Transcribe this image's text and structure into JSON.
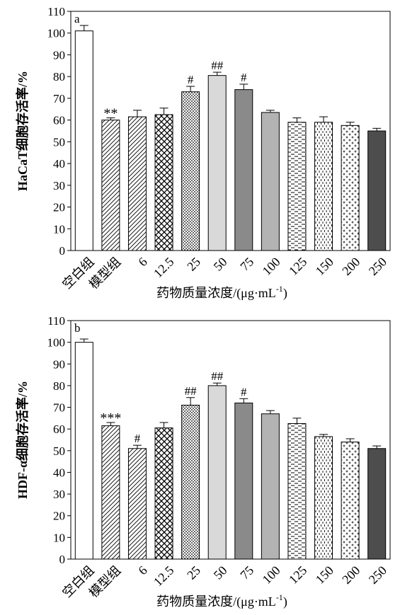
{
  "chart_data": [
    {
      "panel_label": "a",
      "type": "bar",
      "ylabel": "HaCaT细胞存活率/%",
      "xlabel": "药物质量浓度/(μg·mL",
      "xlabel_sup": "-1",
      "xlabel_end": ")",
      "ylim": [
        0,
        110
      ],
      "yticks": [
        0,
        10,
        20,
        30,
        40,
        50,
        60,
        70,
        80,
        90,
        100,
        110
      ],
      "categories": [
        "空白组",
        "模型组",
        "6",
        "12.5",
        "25",
        "50",
        "75",
        "100",
        "125",
        "150",
        "200",
        "250"
      ],
      "values": [
        101,
        60,
        61.5,
        62.5,
        73,
        80.5,
        74,
        63.5,
        59,
        59,
        57.5,
        55
      ],
      "errors": [
        2.5,
        1,
        3,
        3,
        2.5,
        1.5,
        2.5,
        1,
        2,
        2.5,
        1.5,
        1.2
      ],
      "annotations": [
        "",
        "**",
        "",
        "",
        "#",
        "##",
        "#",
        "",
        "",
        "",
        "",
        ""
      ],
      "bar_fills": [
        "white",
        "diag",
        "diag",
        "cross",
        "dots-dense",
        "light-gray",
        "mid-gray",
        "gray",
        "dash",
        "vdash",
        "plus",
        "dark"
      ]
    },
    {
      "panel_label": "b",
      "type": "bar",
      "ylabel": "HDF-α细胞存活率/%",
      "xlabel": "药物质量浓度/(μg·mL",
      "xlabel_sup": "-1",
      "xlabel_end": ")",
      "ylim": [
        0,
        110
      ],
      "yticks": [
        0,
        10,
        20,
        30,
        40,
        50,
        60,
        70,
        80,
        90,
        100,
        110
      ],
      "categories": [
        "空白组",
        "模型组",
        "6",
        "12.5",
        "25",
        "50",
        "75",
        "100",
        "125",
        "150",
        "200",
        "250"
      ],
      "values": [
        100,
        61.5,
        51,
        60.5,
        71,
        80,
        72,
        67,
        62.5,
        56.5,
        54,
        51
      ],
      "errors": [
        1.5,
        1.5,
        1.5,
        2.5,
        3.5,
        1.2,
        2,
        1.5,
        2.5,
        1,
        1.5,
        1.2
      ],
      "annotations": [
        "",
        "***",
        "#",
        "",
        "##",
        "##",
        "#",
        "",
        "",
        "",
        "",
        ""
      ],
      "bar_fills": [
        "white",
        "diag",
        "diag",
        "cross",
        "dots-dense",
        "light-gray",
        "mid-gray",
        "gray",
        "dash",
        "vdash",
        "plus",
        "dark"
      ]
    }
  ]
}
